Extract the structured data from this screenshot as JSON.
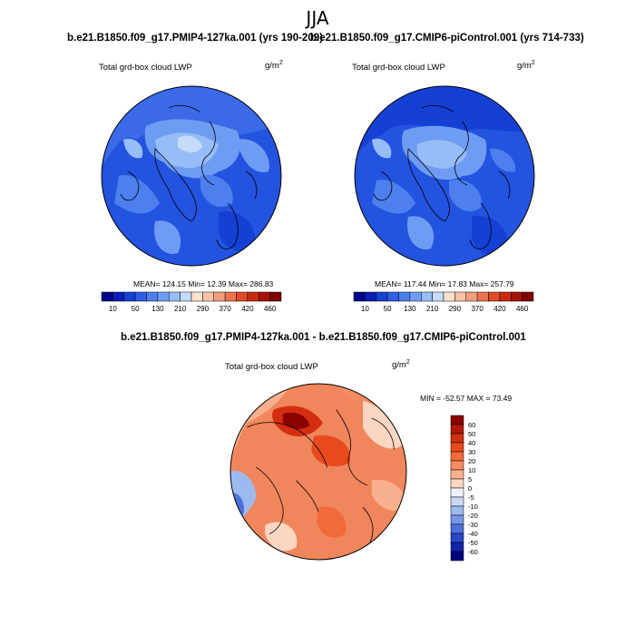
{
  "title": "JJA",
  "panels": [
    {
      "case_title": "b.e21.B1850.f09_g17.PMIP4-127ka.001 (yrs 190-209)",
      "variable": "Total grd-box cloud LWP",
      "units": "g/m",
      "units_exp": "2",
      "stats": {
        "mean_label": "MEAN=",
        "mean": "124.15",
        "min_label": "Min=",
        "min": "12.39",
        "max_label": "Max=",
        "max": "286.83"
      },
      "stats_text": "MEAN= 124.15  Min=  12.39  Max= 286.83"
    },
    {
      "case_title": "b.e21.B1850.f09_g17.CMIP6-piControl.001 (yrs 714-733)",
      "variable": "Total grd-box cloud LWP",
      "units": "g/m",
      "units_exp": "2",
      "stats": {
        "mean_label": "MEAN=",
        "mean": "117.44",
        "min_label": "Min=",
        "min": "17.83",
        "max_label": "Max=",
        "max": "257.79"
      },
      "stats_text": "MEAN= 117.44  Min=  17.83  Max= 257.79"
    }
  ],
  "field_colorbar": {
    "labels": [
      "10",
      "50",
      "130",
      "210",
      "290",
      "370",
      "420",
      "460"
    ],
    "colors": [
      "#00008b",
      "#0a1fb4",
      "#1540d4",
      "#2f5fe6",
      "#4d7fee",
      "#6f9cf3",
      "#97bdf7",
      "#c6dcfa",
      "#fbe3d0",
      "#f7c2a6",
      "#f29e7c",
      "#ec7350",
      "#e04a28",
      "#c72a10",
      "#a4130a",
      "#800000"
    ]
  },
  "difference": {
    "title": "b.e21.B1850.f09_g17.PMIP4-127ka.001 - b.e21.B1850.f09_g17.CMIP6-piControl.001",
    "variable": "Total grd-box cloud LWP",
    "units": "g/m",
    "units_exp": "2",
    "minmax_text": "MIN = -52.57 MAX =  73.49",
    "min": "-52.57",
    "max": "73.49",
    "colorbar": {
      "labels": [
        "60",
        "50",
        "40",
        "30",
        "20",
        "10",
        "5",
        "0",
        "-5",
        "-10",
        "-20",
        "-30",
        "-40",
        "-50",
        "-60"
      ],
      "colors": [
        "#8b0000",
        "#b3170a",
        "#d32e10",
        "#e84a1e",
        "#f36a3a",
        "#f78c62",
        "#f9b08f",
        "#fbd6c2",
        "#eef2fb",
        "#c9d9f5",
        "#9dbaf0",
        "#7497e8",
        "#4c70dc",
        "#2a47c8",
        "#1224a5",
        "#000080"
      ]
    }
  }
}
